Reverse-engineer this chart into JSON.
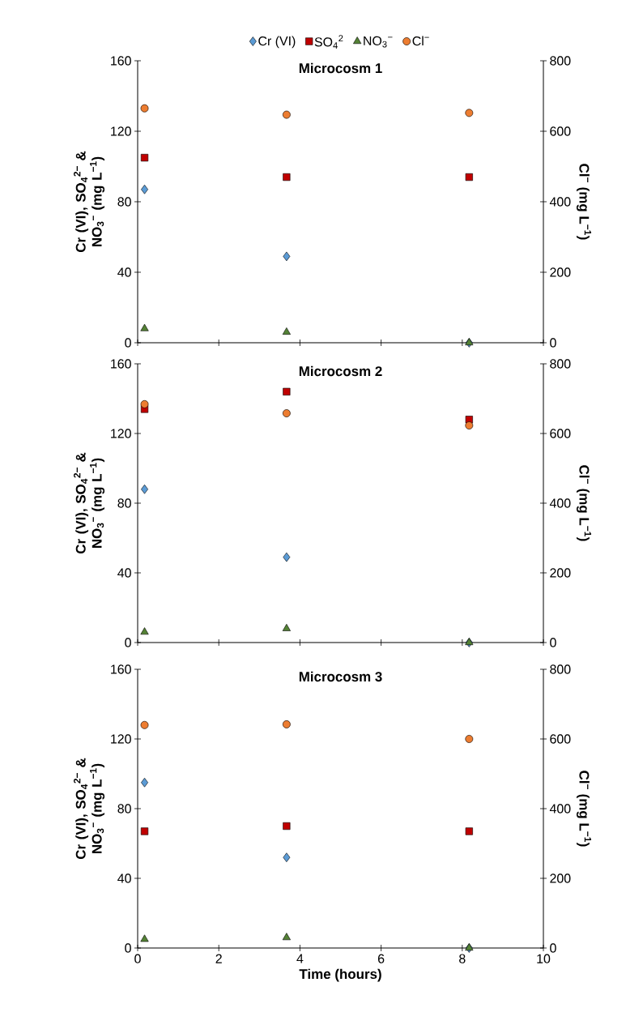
{
  "chart_data": [
    {
      "type": "scatter",
      "title": "Microcosm 1",
      "ylabel": "Cr (VI), SO$_{4}$$^{2−}$ & NO$_{3}$$^{−}$ (mg L$^{−1}$)",
      "y2label": "Cl$^{−}$ (mg L$^{−1}$)",
      "legend": "top",
      "tick_labels": "y",
      "x": [
        0.17,
        3.67,
        8.17
      ],
      "xlim": [
        0,
        10
      ],
      "xticks": [
        0,
        2,
        4,
        6,
        8,
        10
      ],
      "ylim": [
        0,
        160
      ],
      "yticks": [
        0,
        40,
        80,
        120,
        160
      ],
      "y2lim": [
        0,
        800
      ],
      "y2ticks": [
        0,
        200,
        400,
        600,
        800
      ],
      "series": [
        {
          "name": "Cr (VI)",
          "color": "#5b9bd5",
          "marker": "diamond",
          "values": [
            87,
            49,
            0
          ]
        },
        {
          "name": "SO$_{4}$$^{2}$",
          "color": "#c00000",
          "marker": "square",
          "values": [
            105,
            94,
            94
          ]
        },
        {
          "name": "NO$_{3}$$^{−}$",
          "color": "#548235",
          "marker": "triangle",
          "values": [
            8,
            6,
            0
          ]
        },
        {
          "name": "Cl$^{−}$",
          "color": "#ed7d31",
          "marker": "circle",
          "axis": "y2",
          "values": [
            665,
            647,
            652
          ]
        }
      ]
    },
    {
      "type": "scatter",
      "title": "Microcosm 2",
      "ylabel": "Cr (VI), SO$_{4}$$^{2−}$ & NO$_{3}$$^{−}$ (mg L$^{−1}$)",
      "y2label": "Cl$^{−}$ (mg L$^{−1}$)",
      "tick_labels": "y",
      "x": [
        0.17,
        3.67,
        8.17
      ],
      "xlim": [
        0,
        10
      ],
      "xticks": [
        0,
        2,
        4,
        6,
        8,
        10
      ],
      "ylim": [
        0,
        160
      ],
      "yticks": [
        0,
        40,
        80,
        120,
        160
      ],
      "y2lim": [
        0,
        800
      ],
      "y2ticks": [
        0,
        200,
        400,
        600,
        800
      ],
      "series": [
        {
          "color": "#5b9bd5",
          "marker": "diamond",
          "values": [
            88,
            49,
            0
          ]
        },
        {
          "color": "#c00000",
          "marker": "square",
          "values": [
            134,
            144,
            128
          ]
        },
        {
          "color": "#548235",
          "marker": "triangle",
          "values": [
            6,
            8,
            0
          ]
        },
        {
          "color": "#ed7d31",
          "marker": "circle",
          "axis": "y2",
          "values": [
            684,
            658,
            623
          ]
        }
      ]
    },
    {
      "type": "scatter",
      "title": "Microcosm 3",
      "xlabel": "Time (hours)",
      "ylabel": "Cr (VI), SO$_{4}$$^{2−}$ & NO$_{3}$$^{−}$ (mg L$^{−1}$)",
      "y2label": "Cl$^{−}$ (mg L$^{−1}$)",
      "x": [
        0.17,
        3.67,
        8.17
      ],
      "xlim": [
        0,
        10
      ],
      "xticks": [
        0,
        2,
        4,
        6,
        8,
        10
      ],
      "ylim": [
        0,
        160
      ],
      "yticks": [
        0,
        40,
        80,
        120,
        160
      ],
      "y2lim": [
        0,
        800
      ],
      "y2ticks": [
        0,
        200,
        400,
        600,
        800
      ],
      "series": [
        {
          "color": "#5b9bd5",
          "marker": "diamond",
          "values": [
            95,
            52,
            0
          ]
        },
        {
          "color": "#c00000",
          "marker": "square",
          "values": [
            67,
            70,
            67
          ]
        },
        {
          "color": "#548235",
          "marker": "triangle",
          "values": [
            5,
            6,
            0
          ]
        },
        {
          "color": "#ed7d31",
          "marker": "circle",
          "axis": "y2",
          "values": [
            640,
            642,
            600
          ]
        }
      ]
    }
  ]
}
